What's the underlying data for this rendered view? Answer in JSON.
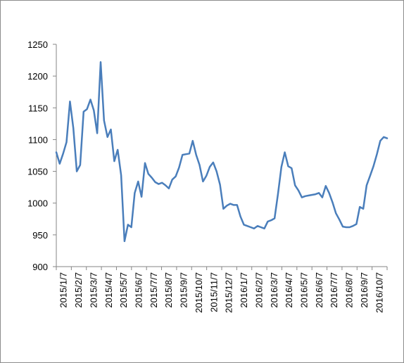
{
  "chart_data": {
    "type": "line",
    "title": "",
    "xlabel": "",
    "ylabel": "",
    "ylim": [
      900,
      1250
    ],
    "yticks": [
      900,
      950,
      1000,
      1050,
      1100,
      1150,
      1200,
      1250
    ],
    "grid": false,
    "legend": "none",
    "line_color": "#4a7ebb",
    "xtick_labels": [
      "2015/1/7",
      "2015/2/7",
      "2015/3/7",
      "2015/4/7",
      "2015/5/7",
      "2015/6/7",
      "2015/7/7",
      "2015/8/7",
      "2015/9/7",
      "2015/10/7",
      "2015/11/7",
      "2015/12/7",
      "2016/1/7",
      "2016/2/7",
      "2016/3/7",
      "2016/4/7",
      "2016/5/7",
      "2016/6/7",
      "2016/7/7",
      "2016/8/7",
      "2016/9/7",
      "2016/10/7"
    ],
    "series": [
      {
        "values": [
          1080,
          1062,
          1078,
          1096,
          1160,
          1118,
          1050,
          1060,
          1144,
          1148,
          1163,
          1146,
          1110,
          1222,
          1130,
          1104,
          1116,
          1066,
          1084,
          1044,
          940,
          966,
          962,
          1016,
          1034,
          1010,
          1063,
          1046,
          1040,
          1033,
          1030,
          1032,
          1028,
          1023,
          1037,
          1042,
          1056,
          1076,
          1077,
          1078,
          1098,
          1076,
          1060,
          1034,
          1043,
          1057,
          1064,
          1050,
          1029,
          991,
          996,
          999,
          997,
          997,
          979,
          966,
          964,
          962,
          960,
          964,
          962,
          960,
          971,
          973,
          976,
          1014,
          1057,
          1080,
          1058,
          1055,
          1028,
          1020,
          1009,
          1011,
          1012,
          1013,
          1014,
          1016,
          1009,
          1027,
          1016,
          1001,
          984,
          974,
          963,
          962,
          962,
          964,
          967,
          994,
          991,
          1028,
          1043,
          1058,
          1077,
          1098,
          1104,
          1102
        ]
      }
    ]
  }
}
